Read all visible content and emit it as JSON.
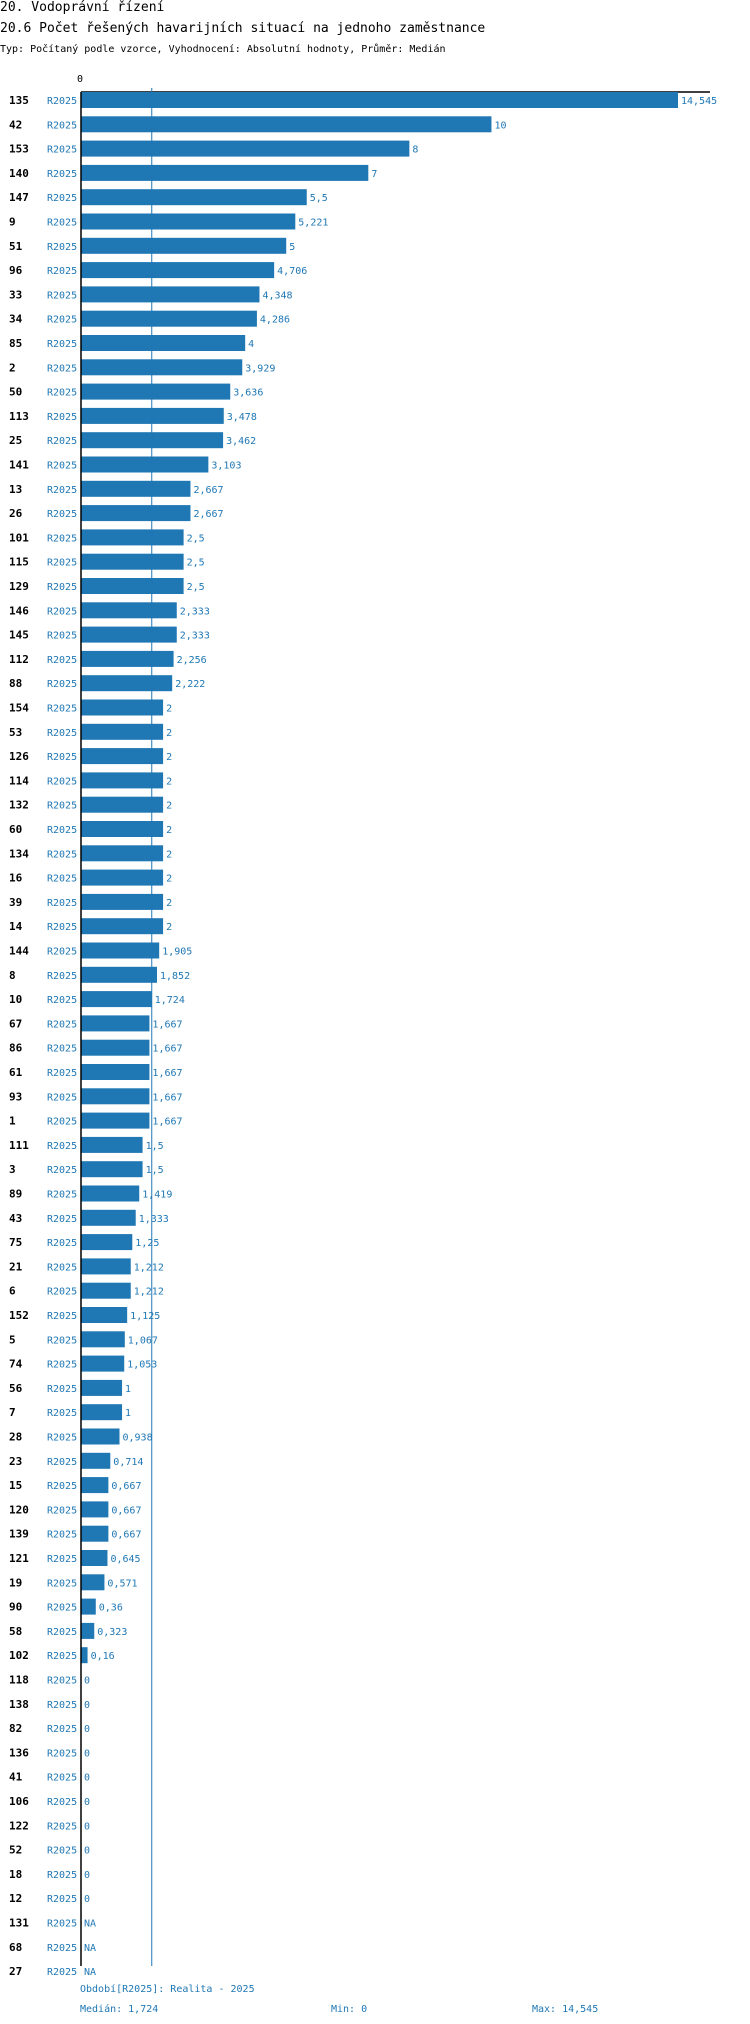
{
  "header": {
    "line1": "20. Vodoprávní řízení",
    "line2": "20.6 Počet řešených havarijních situací na jednoho zaměstnance",
    "line3": "Typ: Počítaný podle vzorce, Vyhodnocení: Absolutní hodnoty, Průměr: Medián"
  },
  "chart_data": {
    "type": "bar",
    "orientation": "horizontal",
    "x_tick_label": "0",
    "series_label": "R2025",
    "median_line": 1.724,
    "xlim": [
      0,
      14.545
    ],
    "categories": [
      "135",
      "42",
      "153",
      "140",
      "147",
      "9",
      "51",
      "96",
      "33",
      "34",
      "85",
      "2",
      "50",
      "113",
      "25",
      "141",
      "13",
      "26",
      "101",
      "115",
      "129",
      "146",
      "145",
      "112",
      "88",
      "154",
      "53",
      "126",
      "114",
      "132",
      "60",
      "134",
      "16",
      "39",
      "14",
      "144",
      "8",
      "10",
      "67",
      "86",
      "61",
      "93",
      "1",
      "111",
      "3",
      "89",
      "43",
      "75",
      "21",
      "6",
      "152",
      "5",
      "74",
      "56",
      "7",
      "28",
      "23",
      "15",
      "120",
      "139",
      "121",
      "19",
      "90",
      "58",
      "102",
      "118",
      "138",
      "82",
      "136",
      "41",
      "106",
      "122",
      "52",
      "18",
      "12",
      "131",
      "68",
      "27"
    ],
    "values": [
      14.545,
      10,
      8,
      7,
      5.5,
      5.221,
      5,
      4.706,
      4.348,
      4.286,
      4,
      3.929,
      3.636,
      3.478,
      3.462,
      3.103,
      2.667,
      2.667,
      2.5,
      2.5,
      2.5,
      2.333,
      2.333,
      2.256,
      2.222,
      2,
      2,
      2,
      2,
      2,
      2,
      2,
      2,
      2,
      2,
      1.905,
      1.852,
      1.724,
      1.667,
      1.667,
      1.667,
      1.667,
      1.667,
      1.5,
      1.5,
      1.419,
      1.333,
      1.25,
      1.212,
      1.212,
      1.125,
      1.067,
      1.053,
      1,
      1,
      0.938,
      0.714,
      0.667,
      0.667,
      0.667,
      0.645,
      0.571,
      0.36,
      0.323,
      0.16,
      0,
      0,
      0,
      0,
      0,
      0,
      0,
      0,
      0,
      0,
      null,
      null,
      null
    ],
    "value_labels": [
      "14,545",
      "10",
      "8",
      "7",
      "5,5",
      "5,221",
      "5",
      "4,706",
      "4,348",
      "4,286",
      "4",
      "3,929",
      "3,636",
      "3,478",
      "3,462",
      "3,103",
      "2,667",
      "2,667",
      "2,5",
      "2,5",
      "2,5",
      "2,333",
      "2,333",
      "2,256",
      "2,222",
      "2",
      "2",
      "2",
      "2",
      "2",
      "2",
      "2",
      "2",
      "2",
      "2",
      "1,905",
      "1,852",
      "1,724",
      "1,667",
      "1,667",
      "1,667",
      "1,667",
      "1,667",
      "1,5",
      "1,5",
      "1,419",
      "1,333",
      "1,25",
      "1,212",
      "1,212",
      "1,125",
      "1,067",
      "1,053",
      "1",
      "1",
      "0,938",
      "0,714",
      "0,667",
      "0,667",
      "0,667",
      "0,645",
      "0,571",
      "0,36",
      "0,323",
      "0,16",
      "0",
      "0",
      "0",
      "0",
      "0",
      "0",
      "0",
      "0",
      "0",
      "0",
      "NA",
      "NA",
      "NA"
    ],
    "colors": {
      "bar": "#1f77b4",
      "label": "#1f77b4",
      "axis": "#000000",
      "median": "#1f77b4"
    }
  },
  "footer": {
    "period": "Období[R2025]: Realita - 2025",
    "median": "Medián: 1,724",
    "min": "Min: 0",
    "max": "Max: 14,545"
  }
}
